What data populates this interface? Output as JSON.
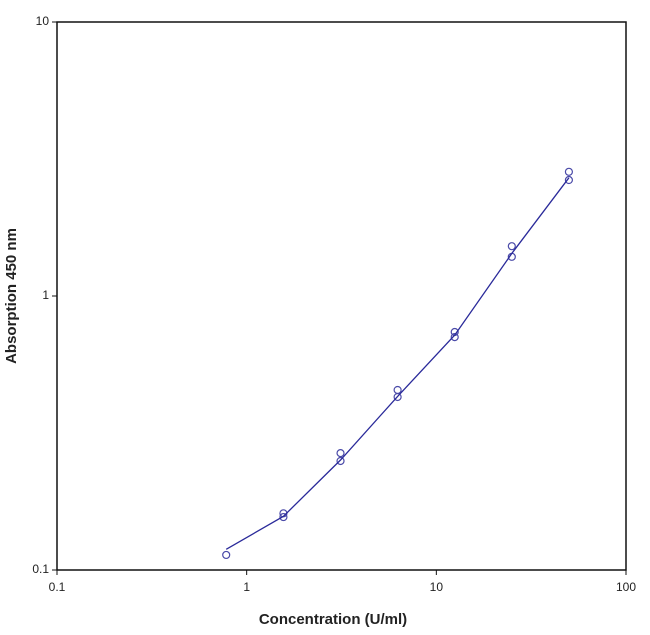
{
  "chart_data": {
    "type": "scatter",
    "x_label": "Concentration (U/ml)",
    "y_label": "Absorption 450 nm",
    "xscale": "log",
    "yscale": "log",
    "xlim": [
      0.1,
      100
    ],
    "xticks": [
      0.1,
      1,
      10,
      100
    ],
    "ylim": [
      0.1,
      10
    ],
    "yticks": [
      0.1,
      1,
      10
    ],
    "series": [
      {
        "type": "scatter",
        "color": "#4a4aa8",
        "x": [
          0.78,
          1.5625,
          1.5625,
          3.125,
          3.125,
          6.25,
          6.25,
          12.5,
          12.5,
          25,
          25,
          50,
          50
        ],
        "values": [
          0.1135,
          0.161,
          0.156,
          0.267,
          0.25,
          0.454,
          0.428,
          0.739,
          0.708,
          1.52,
          1.39,
          2.84,
          2.65
        ]
      },
      {
        "type": "line",
        "color": "#2a2a9a",
        "x": [
          0.78,
          1.5625,
          3.125,
          6.25,
          12.5,
          25,
          50
        ],
        "values": [
          0.119,
          0.157,
          0.252,
          0.43,
          0.72,
          1.43,
          2.7
        ]
      }
    ]
  }
}
